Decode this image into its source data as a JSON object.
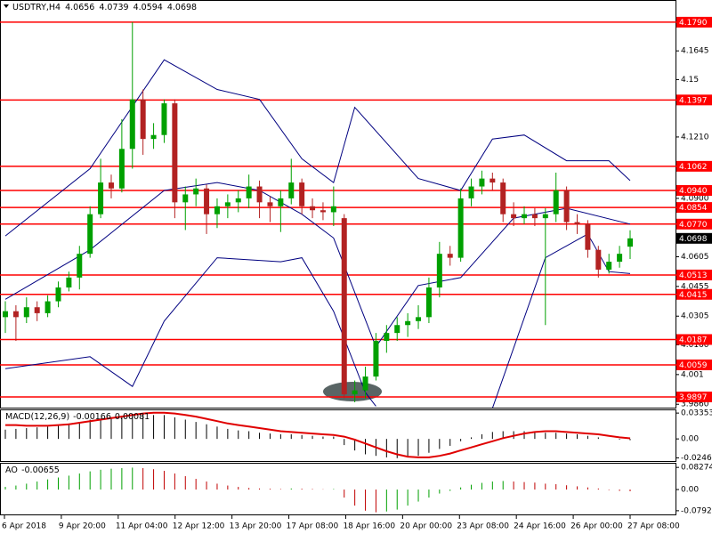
{
  "chart_data": {
    "type": "candlestick",
    "title": "USDTRY,H4",
    "up_color": "#00a000",
    "down_color": "#b22222",
    "candles": [
      [
        4.03,
        4.038,
        4.022,
        4.033
      ],
      [
        4.033,
        4.036,
        4.018,
        4.03
      ],
      [
        4.03,
        4.04,
        4.027,
        4.035
      ],
      [
        4.035,
        4.038,
        4.028,
        4.032
      ],
      [
        4.032,
        4.041,
        4.03,
        4.038
      ],
      [
        4.038,
        4.048,
        4.035,
        4.045
      ],
      [
        4.045,
        4.053,
        4.043,
        4.05
      ],
      [
        4.05,
        4.066,
        4.044,
        4.062
      ],
      [
        4.062,
        4.086,
        4.06,
        4.082
      ],
      [
        4.082,
        4.11,
        4.08,
        4.098
      ],
      [
        4.098,
        4.102,
        4.09,
        4.095
      ],
      [
        4.095,
        4.13,
        4.093,
        4.115
      ],
      [
        4.115,
        4.179,
        4.105,
        4.14
      ],
      [
        4.14,
        4.145,
        4.112,
        4.12
      ],
      [
        4.12,
        4.128,
        4.115,
        4.122
      ],
      [
        4.122,
        4.14,
        4.118,
        4.138
      ],
      [
        4.138,
        4.14,
        4.08,
        4.088
      ],
      [
        4.088,
        4.096,
        4.074,
        4.092
      ],
      [
        4.092,
        4.1,
        4.086,
        4.095
      ],
      [
        4.095,
        4.097,
        4.072,
        4.082
      ],
      [
        4.082,
        4.09,
        4.075,
        4.086
      ],
      [
        4.086,
        4.092,
        4.08,
        4.088
      ],
      [
        4.088,
        4.094,
        4.083,
        4.09
      ],
      [
        4.09,
        4.102,
        4.085,
        4.096
      ],
      [
        4.096,
        4.099,
        4.08,
        4.088
      ],
      [
        4.088,
        4.091,
        4.078,
        4.086
      ],
      [
        4.086,
        4.094,
        4.073,
        4.09
      ],
      [
        4.09,
        4.11,
        4.087,
        4.098
      ],
      [
        4.098,
        4.1,
        4.082,
        4.086
      ],
      [
        4.086,
        4.09,
        4.08,
        4.084
      ],
      [
        4.084,
        4.088,
        4.079,
        4.083
      ],
      [
        4.083,
        4.096,
        4.076,
        4.086
      ],
      [
        4.08,
        4.082,
        3.989,
        3.991
      ],
      [
        3.991,
        3.998,
        3.987,
        3.993
      ],
      [
        3.993,
        4.005,
        3.989,
        4.0
      ],
      [
        4.0,
        4.022,
        3.998,
        4.018
      ],
      [
        4.018,
        4.026,
        4.012,
        4.022
      ],
      [
        4.022,
        4.03,
        4.018,
        4.026
      ],
      [
        4.026,
        4.032,
        4.02,
        4.028
      ],
      [
        4.028,
        4.036,
        4.024,
        4.03
      ],
      [
        4.03,
        4.05,
        4.027,
        4.045
      ],
      [
        4.045,
        4.068,
        4.04,
        4.062
      ],
      [
        4.062,
        4.066,
        4.056,
        4.06
      ],
      [
        4.06,
        4.095,
        4.058,
        4.09
      ],
      [
        4.09,
        4.1,
        4.086,
        4.096
      ],
      [
        4.096,
        4.104,
        4.092,
        4.1
      ],
      [
        4.1,
        4.103,
        4.094,
        4.098
      ],
      [
        4.098,
        4.1,
        4.078,
        4.082
      ],
      [
        4.082,
        4.088,
        4.076,
        4.08
      ],
      [
        4.08,
        4.086,
        4.077,
        4.082
      ],
      [
        4.082,
        4.085,
        4.076,
        4.08
      ],
      [
        4.08,
        4.085,
        4.026,
        4.082
      ],
      [
        4.082,
        4.103,
        4.078,
        4.094
      ],
      [
        4.094,
        4.096,
        4.074,
        4.078
      ],
      [
        4.078,
        4.082,
        4.072,
        4.077
      ],
      [
        4.077,
        4.079,
        4.06,
        4.064
      ],
      [
        4.064,
        4.066,
        4.05,
        4.054
      ],
      [
        4.054,
        4.062,
        4.052,
        4.058
      ],
      [
        4.058,
        4.066,
        4.055,
        4.062
      ],
      [
        4.0656,
        4.0739,
        4.0594,
        4.0698
      ]
    ],
    "x_labels": [
      "6 Apr 2018",
      "9 Apr 20:00",
      "11 Apr 04:00",
      "12 Apr 12:00",
      "13 Apr 20:00",
      "17 Apr 08:00",
      "18 Apr 16:00",
      "20 Apr 00:00",
      "23 Apr 08:00",
      "24 Apr 16:00",
      "26 Apr 00:00",
      "27 Apr 08:00"
    ],
    "ylim": [
      3.9843,
      4.1893
    ],
    "yticks": [
      {
        "value": 4.1645,
        "label": "4.1645"
      },
      4.15,
      {
        "value": 4.121,
        "label": "4.1210"
      },
      {
        "value": 4.09,
        "label": "4.0900"
      },
      4.0605,
      4.0455,
      4.0305,
      {
        "value": 4.016,
        "label": "4.0160"
      },
      4.001,
      {
        "value": 3.986,
        "label": "3.9860"
      }
    ],
    "levels": {
      "color": "#ff0000",
      "values": [
        {
          "value": 4.179,
          "label": "4.1790"
        },
        4.1397,
        4.1062,
        {
          "value": 4.094,
          "label": "4.0940"
        },
        4.0854,
        {
          "value": 4.077,
          "label": "4.0770"
        },
        4.0513,
        4.0415,
        4.0187,
        4.0059,
        3.9897
      ]
    },
    "bands": [
      {
        "color": "#000080",
        "x": [
          0,
          8,
          15,
          20,
          24,
          28,
          31,
          33,
          39,
          43,
          46,
          49,
          53,
          57,
          59
        ],
        "values": [
          4.071,
          4.105,
          4.16,
          4.145,
          4.14,
          4.11,
          4.098,
          4.136,
          4.1,
          4.094,
          4.12,
          4.122,
          4.109,
          4.109,
          4.099
        ]
      },
      {
        "color": "#000080",
        "x": [
          0,
          8,
          15,
          20,
          24,
          28,
          31,
          35,
          39,
          43,
          48,
          53,
          59
        ],
        "values": [
          4.039,
          4.064,
          4.094,
          4.098,
          4.094,
          4.082,
          4.07,
          4.015,
          4.046,
          4.05,
          4.08,
          4.085,
          4.077
        ]
      },
      {
        "color": "#000080",
        "x": [
          0,
          8,
          12,
          15,
          20,
          26,
          28,
          31,
          34,
          35,
          40,
          46,
          51,
          55,
          57,
          59
        ],
        "values": [
          4.004,
          4.01,
          3.995,
          4.028,
          4.06,
          4.058,
          4.06,
          4.033,
          3.992,
          3.985,
          null,
          3.984,
          4.06,
          4.072,
          4.053,
          4.052
        ]
      }
    ],
    "macd": {
      "label": "MACD(12,26,9)",
      "ylim": [
        -0.0287,
        0.0383
      ],
      "yticks": [
        0.03353,
        {
          "value": 0,
          "label": "0.00"
        },
        -0.0246
      ],
      "hist_color": "#000000",
      "signal_color": "#e00000",
      "histogram": [
        0.012,
        0.013,
        0.014,
        0.015,
        0.016,
        0.018,
        0.02,
        0.022,
        0.025,
        0.027,
        0.028,
        0.03,
        0.032,
        0.032,
        0.031,
        0.031,
        0.028,
        0.025,
        0.022,
        0.019,
        0.016,
        0.013,
        0.011,
        0.01,
        0.008,
        0.007,
        0.006,
        0.006,
        0.005,
        0.004,
        0.003,
        0.003,
        -0.008,
        -0.015,
        -0.02,
        -0.022,
        -0.024,
        -0.025,
        -0.024,
        -0.022,
        -0.018,
        -0.013,
        -0.009,
        -0.003,
        0.002,
        0.006,
        0.009,
        0.01,
        0.01,
        0.01,
        0.009,
        0.008,
        0.008,
        0.007,
        0.006,
        0.004,
        0.002,
        0.0,
        -0.001,
        -0.00166
      ],
      "signal": [
        0.018,
        0.018,
        0.017,
        0.017,
        0.017,
        0.018,
        0.019,
        0.021,
        0.023,
        0.025,
        0.027,
        0.029,
        0.031,
        0.033,
        0.034,
        0.034,
        0.033,
        0.031,
        0.029,
        0.026,
        0.023,
        0.02,
        0.018,
        0.016,
        0.014,
        0.012,
        0.01,
        0.009,
        0.008,
        0.007,
        0.006,
        0.005,
        0.003,
        -0.001,
        -0.006,
        -0.011,
        -0.016,
        -0.02,
        -0.023,
        -0.024,
        -0.024,
        -0.022,
        -0.019,
        -0.015,
        -0.011,
        -0.007,
        -0.003,
        0.001,
        0.004,
        0.007,
        0.009,
        0.01,
        0.01,
        0.009,
        0.008,
        0.007,
        0.006,
        0.004,
        0.002,
        0.00081
      ]
    },
    "ao": {
      "label": "AO",
      "ylim": [
        -0.093,
        0.1
      ],
      "yticks": [
        0.08274,
        {
          "value": 0,
          "label": "0.00"
        },
        -0.07926
      ],
      "up_color": "#00a000",
      "down_color": "#c00000",
      "values": [
        0.01,
        0.015,
        0.022,
        0.03,
        0.038,
        0.045,
        0.052,
        0.06,
        0.068,
        0.074,
        0.078,
        0.08,
        0.082,
        0.08,
        0.076,
        0.07,
        0.06,
        0.05,
        0.04,
        0.03,
        0.022,
        0.015,
        0.01,
        0.006,
        0.004,
        0.003,
        0.002,
        0.004,
        0.003,
        0.002,
        0.001,
        0.002,
        -0.03,
        -0.06,
        -0.079,
        -0.085,
        -0.082,
        -0.075,
        -0.06,
        -0.045,
        -0.03,
        -0.015,
        -0.005,
        0.008,
        0.018,
        0.025,
        0.03,
        0.032,
        0.03,
        0.028,
        0.026,
        0.022,
        0.02,
        0.016,
        0.012,
        0.008,
        0.004,
        -0.002,
        -0.005,
        -0.00655
      ]
    }
  }
}
